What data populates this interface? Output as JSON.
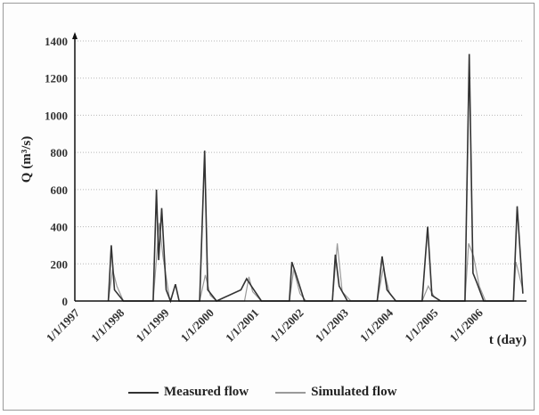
{
  "chart_data": {
    "type": "line",
    "title": "",
    "xlabel": "t (day)",
    "ylabel": "Q (m³/s)",
    "ylim": [
      0,
      1400
    ],
    "yticks": [
      0,
      200,
      400,
      600,
      800,
      1000,
      1200,
      1400
    ],
    "xticks": [
      "1/1/1997",
      "1/1/1998",
      "1/1/1999",
      "1/1/2000",
      "1/1/2001",
      "1/1/2002",
      "1/1/2003",
      "1/1/2004",
      "1/1/2005",
      "1/1/2006"
    ],
    "grid": "horizontal",
    "legend_position": "bottom",
    "series": [
      {
        "name": "Measured flow",
        "color": "#333333",
        "points": [
          [
            "1997-10-01",
            0
          ],
          [
            "1997-10-25",
            300
          ],
          [
            "1997-11-20",
            60
          ],
          [
            "1998-02-01",
            0
          ],
          [
            "1998-10-01",
            0
          ],
          [
            "1998-10-28",
            600
          ],
          [
            "1998-11-15",
            220
          ],
          [
            "1998-12-10",
            500
          ],
          [
            "1999-01-15",
            60
          ],
          [
            "1999-02-20",
            0
          ],
          [
            "1999-04-01",
            90
          ],
          [
            "1999-05-01",
            0
          ],
          [
            "1999-10-15",
            0
          ],
          [
            "1999-11-25",
            810
          ],
          [
            "1999-12-20",
            60
          ],
          [
            "2000-03-01",
            0
          ],
          [
            "2000-09-15",
            60
          ],
          [
            "2000-11-01",
            120
          ],
          [
            "2000-12-10",
            80
          ],
          [
            "2001-03-01",
            0
          ],
          [
            "2001-10-15",
            0
          ],
          [
            "2001-11-05",
            210
          ],
          [
            "2001-12-05",
            150
          ],
          [
            "2002-02-15",
            0
          ],
          [
            "2002-10-01",
            0
          ],
          [
            "2002-10-25",
            250
          ],
          [
            "2002-11-25",
            80
          ],
          [
            "2003-02-01",
            0
          ],
          [
            "2003-10-01",
            0
          ],
          [
            "2003-11-10",
            240
          ],
          [
            "2003-12-20",
            60
          ],
          [
            "2004-03-01",
            0
          ],
          [
            "2004-10-01",
            0
          ],
          [
            "2004-11-15",
            400
          ],
          [
            "2004-12-20",
            30
          ],
          [
            "2005-03-01",
            0
          ],
          [
            "2005-09-15",
            0
          ],
          [
            "2005-10-20",
            1330
          ],
          [
            "2005-11-20",
            150
          ],
          [
            "2005-12-20",
            100
          ],
          [
            "2006-02-15",
            0
          ],
          [
            "2006-10-15",
            0
          ],
          [
            "2006-11-15",
            510
          ],
          [
            "2006-12-31",
            40
          ]
        ]
      },
      {
        "name": "Simulated flow",
        "color": "#9a9a9a",
        "points": [
          [
            "1997-10-01",
            0
          ],
          [
            "1997-11-05",
            170
          ],
          [
            "1997-12-10",
            80
          ],
          [
            "1998-02-01",
            0
          ],
          [
            "1998-10-01",
            0
          ],
          [
            "1998-11-20",
            420
          ],
          [
            "1998-12-20",
            240
          ],
          [
            "1999-02-15",
            0
          ],
          [
            "1999-10-15",
            0
          ],
          [
            "1999-12-01",
            140
          ],
          [
            "2000-01-10",
            30
          ],
          [
            "2000-03-01",
            0
          ],
          [
            "2000-10-15",
            0
          ],
          [
            "2000-11-20",
            130
          ],
          [
            "2000-12-20",
            50
          ],
          [
            "2001-03-01",
            0
          ],
          [
            "2001-10-15",
            0
          ],
          [
            "2001-11-20",
            170
          ],
          [
            "2002-01-10",
            40
          ],
          [
            "2002-03-01",
            0
          ],
          [
            "2002-10-01",
            0
          ],
          [
            "2002-11-10",
            310
          ],
          [
            "2002-12-20",
            50
          ],
          [
            "2003-03-01",
            0
          ],
          [
            "2003-10-01",
            0
          ],
          [
            "2003-11-20",
            180
          ],
          [
            "2004-01-10",
            40
          ],
          [
            "2004-03-01",
            0
          ],
          [
            "2004-10-01",
            0
          ],
          [
            "2004-11-20",
            80
          ],
          [
            "2005-01-10",
            20
          ],
          [
            "2005-03-01",
            0
          ],
          [
            "2005-09-15",
            0
          ],
          [
            "2005-10-15",
            310
          ],
          [
            "2005-11-25",
            240
          ],
          [
            "2006-01-10",
            80
          ],
          [
            "2006-03-01",
            0
          ],
          [
            "2006-10-15",
            0
          ],
          [
            "2006-11-05",
            210
          ],
          [
            "2006-12-31",
            60
          ]
        ]
      }
    ]
  }
}
